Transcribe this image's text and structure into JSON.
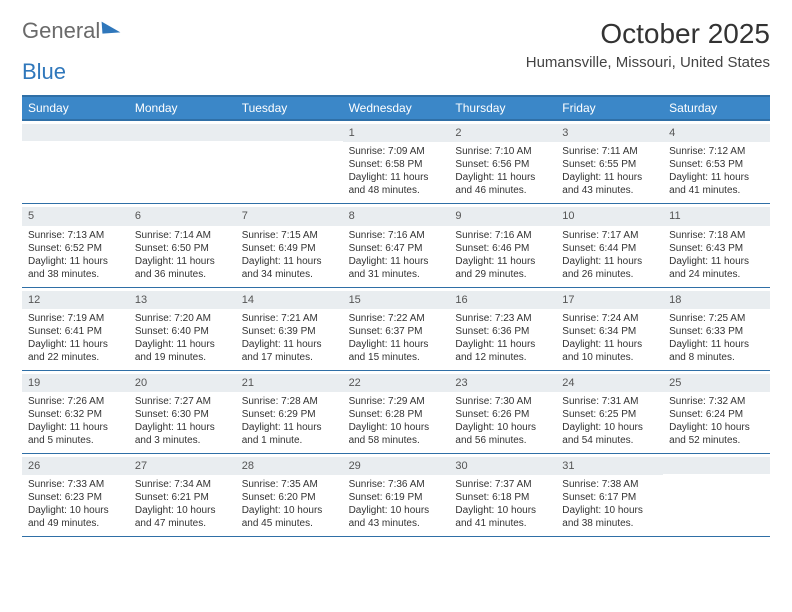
{
  "logo": {
    "text1": "General",
    "text2": "Blue"
  },
  "title": "October 2025",
  "location": "Humansville, Missouri, United States",
  "colors": {
    "header_bg": "#3b87c8",
    "header_border": "#2f6fa6",
    "daynum_bg": "#e9edf0",
    "text": "#333333",
    "logo_blue": "#2f77bb"
  },
  "day_names": [
    "Sunday",
    "Monday",
    "Tuesday",
    "Wednesday",
    "Thursday",
    "Friday",
    "Saturday"
  ],
  "weeks": [
    [
      {
        "n": "",
        "sunrise": "",
        "sunset": "",
        "daylight": ""
      },
      {
        "n": "",
        "sunrise": "",
        "sunset": "",
        "daylight": ""
      },
      {
        "n": "",
        "sunrise": "",
        "sunset": "",
        "daylight": ""
      },
      {
        "n": "1",
        "sunrise": "Sunrise: 7:09 AM",
        "sunset": "Sunset: 6:58 PM",
        "daylight": "Daylight: 11 hours and 48 minutes."
      },
      {
        "n": "2",
        "sunrise": "Sunrise: 7:10 AM",
        "sunset": "Sunset: 6:56 PM",
        "daylight": "Daylight: 11 hours and 46 minutes."
      },
      {
        "n": "3",
        "sunrise": "Sunrise: 7:11 AM",
        "sunset": "Sunset: 6:55 PM",
        "daylight": "Daylight: 11 hours and 43 minutes."
      },
      {
        "n": "4",
        "sunrise": "Sunrise: 7:12 AM",
        "sunset": "Sunset: 6:53 PM",
        "daylight": "Daylight: 11 hours and 41 minutes."
      }
    ],
    [
      {
        "n": "5",
        "sunrise": "Sunrise: 7:13 AM",
        "sunset": "Sunset: 6:52 PM",
        "daylight": "Daylight: 11 hours and 38 minutes."
      },
      {
        "n": "6",
        "sunrise": "Sunrise: 7:14 AM",
        "sunset": "Sunset: 6:50 PM",
        "daylight": "Daylight: 11 hours and 36 minutes."
      },
      {
        "n": "7",
        "sunrise": "Sunrise: 7:15 AM",
        "sunset": "Sunset: 6:49 PM",
        "daylight": "Daylight: 11 hours and 34 minutes."
      },
      {
        "n": "8",
        "sunrise": "Sunrise: 7:16 AM",
        "sunset": "Sunset: 6:47 PM",
        "daylight": "Daylight: 11 hours and 31 minutes."
      },
      {
        "n": "9",
        "sunrise": "Sunrise: 7:16 AM",
        "sunset": "Sunset: 6:46 PM",
        "daylight": "Daylight: 11 hours and 29 minutes."
      },
      {
        "n": "10",
        "sunrise": "Sunrise: 7:17 AM",
        "sunset": "Sunset: 6:44 PM",
        "daylight": "Daylight: 11 hours and 26 minutes."
      },
      {
        "n": "11",
        "sunrise": "Sunrise: 7:18 AM",
        "sunset": "Sunset: 6:43 PM",
        "daylight": "Daylight: 11 hours and 24 minutes."
      }
    ],
    [
      {
        "n": "12",
        "sunrise": "Sunrise: 7:19 AM",
        "sunset": "Sunset: 6:41 PM",
        "daylight": "Daylight: 11 hours and 22 minutes."
      },
      {
        "n": "13",
        "sunrise": "Sunrise: 7:20 AM",
        "sunset": "Sunset: 6:40 PM",
        "daylight": "Daylight: 11 hours and 19 minutes."
      },
      {
        "n": "14",
        "sunrise": "Sunrise: 7:21 AM",
        "sunset": "Sunset: 6:39 PM",
        "daylight": "Daylight: 11 hours and 17 minutes."
      },
      {
        "n": "15",
        "sunrise": "Sunrise: 7:22 AM",
        "sunset": "Sunset: 6:37 PM",
        "daylight": "Daylight: 11 hours and 15 minutes."
      },
      {
        "n": "16",
        "sunrise": "Sunrise: 7:23 AM",
        "sunset": "Sunset: 6:36 PM",
        "daylight": "Daylight: 11 hours and 12 minutes."
      },
      {
        "n": "17",
        "sunrise": "Sunrise: 7:24 AM",
        "sunset": "Sunset: 6:34 PM",
        "daylight": "Daylight: 11 hours and 10 minutes."
      },
      {
        "n": "18",
        "sunrise": "Sunrise: 7:25 AM",
        "sunset": "Sunset: 6:33 PM",
        "daylight": "Daylight: 11 hours and 8 minutes."
      }
    ],
    [
      {
        "n": "19",
        "sunrise": "Sunrise: 7:26 AM",
        "sunset": "Sunset: 6:32 PM",
        "daylight": "Daylight: 11 hours and 5 minutes."
      },
      {
        "n": "20",
        "sunrise": "Sunrise: 7:27 AM",
        "sunset": "Sunset: 6:30 PM",
        "daylight": "Daylight: 11 hours and 3 minutes."
      },
      {
        "n": "21",
        "sunrise": "Sunrise: 7:28 AM",
        "sunset": "Sunset: 6:29 PM",
        "daylight": "Daylight: 11 hours and 1 minute."
      },
      {
        "n": "22",
        "sunrise": "Sunrise: 7:29 AM",
        "sunset": "Sunset: 6:28 PM",
        "daylight": "Daylight: 10 hours and 58 minutes."
      },
      {
        "n": "23",
        "sunrise": "Sunrise: 7:30 AM",
        "sunset": "Sunset: 6:26 PM",
        "daylight": "Daylight: 10 hours and 56 minutes."
      },
      {
        "n": "24",
        "sunrise": "Sunrise: 7:31 AM",
        "sunset": "Sunset: 6:25 PM",
        "daylight": "Daylight: 10 hours and 54 minutes."
      },
      {
        "n": "25",
        "sunrise": "Sunrise: 7:32 AM",
        "sunset": "Sunset: 6:24 PM",
        "daylight": "Daylight: 10 hours and 52 minutes."
      }
    ],
    [
      {
        "n": "26",
        "sunrise": "Sunrise: 7:33 AM",
        "sunset": "Sunset: 6:23 PM",
        "daylight": "Daylight: 10 hours and 49 minutes."
      },
      {
        "n": "27",
        "sunrise": "Sunrise: 7:34 AM",
        "sunset": "Sunset: 6:21 PM",
        "daylight": "Daylight: 10 hours and 47 minutes."
      },
      {
        "n": "28",
        "sunrise": "Sunrise: 7:35 AM",
        "sunset": "Sunset: 6:20 PM",
        "daylight": "Daylight: 10 hours and 45 minutes."
      },
      {
        "n": "29",
        "sunrise": "Sunrise: 7:36 AM",
        "sunset": "Sunset: 6:19 PM",
        "daylight": "Daylight: 10 hours and 43 minutes."
      },
      {
        "n": "30",
        "sunrise": "Sunrise: 7:37 AM",
        "sunset": "Sunset: 6:18 PM",
        "daylight": "Daylight: 10 hours and 41 minutes."
      },
      {
        "n": "31",
        "sunrise": "Sunrise: 7:38 AM",
        "sunset": "Sunset: 6:17 PM",
        "daylight": "Daylight: 10 hours and 38 minutes."
      },
      {
        "n": "",
        "sunrise": "",
        "sunset": "",
        "daylight": ""
      }
    ]
  ]
}
